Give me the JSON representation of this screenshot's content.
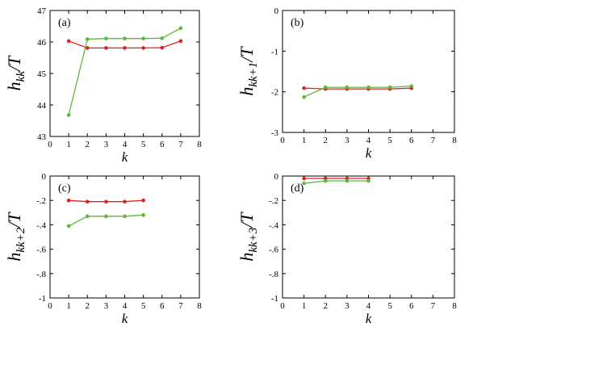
{
  "chart_data": [
    {
      "type": "line",
      "panel_label": "(a)",
      "xlabel": "k",
      "ylabel": {
        "base": "h",
        "sub": "kk",
        "tail": "/T"
      },
      "xlim": [
        0,
        8
      ],
      "ylim": [
        43,
        47
      ],
      "xticks": [
        0,
        1,
        2,
        3,
        4,
        5,
        6,
        7,
        8
      ],
      "yticks": [
        43,
        44,
        45,
        46,
        47
      ],
      "grid": false,
      "series": [
        {
          "color": "#e02020",
          "x": [
            1,
            2,
            3,
            4,
            5,
            6,
            7
          ],
          "y": [
            46.03,
            45.81,
            45.81,
            45.81,
            45.81,
            45.82,
            46.03
          ]
        },
        {
          "color": "#5db83a",
          "x": [
            1,
            2,
            3,
            4,
            5,
            6,
            7
          ],
          "y": [
            43.68,
            46.09,
            46.11,
            46.11,
            46.11,
            46.12,
            46.44
          ]
        }
      ]
    },
    {
      "type": "line",
      "panel_label": "(b)",
      "xlabel": "k",
      "ylabel": {
        "base": "h",
        "sub": "kk+1",
        "tail": "/T"
      },
      "xlim": [
        0,
        8
      ],
      "ylim": [
        -3,
        0
      ],
      "xticks": [
        0,
        1,
        2,
        3,
        4,
        5,
        6,
        7,
        8
      ],
      "yticks": [
        -3,
        -2,
        -1,
        0
      ],
      "grid": false,
      "series": [
        {
          "color": "#e02020",
          "x": [
            1,
            2,
            3,
            4,
            5,
            6
          ],
          "y": [
            -1.91,
            -1.93,
            -1.93,
            -1.93,
            -1.93,
            -1.91
          ]
        },
        {
          "color": "#5db83a",
          "x": [
            1,
            2,
            3,
            4,
            5,
            6
          ],
          "y": [
            -2.13,
            -1.89,
            -1.89,
            -1.89,
            -1.89,
            -1.86
          ]
        }
      ]
    },
    {
      "type": "line",
      "panel_label": "(c)",
      "xlabel": "k",
      "ylabel": {
        "base": "h",
        "sub": "kk+2",
        "tail": "/T"
      },
      "xlim": [
        0,
        8
      ],
      "ylim": [
        -1,
        0
      ],
      "xticks": [
        0,
        1,
        2,
        3,
        4,
        5,
        6,
        7,
        8
      ],
      "yticks": [
        -1,
        -0.8,
        -0.6,
        -0.4,
        -0.2,
        0
      ],
      "grid": false,
      "series": [
        {
          "color": "#e02020",
          "x": [
            1,
            2,
            3,
            4,
            5
          ],
          "y": [
            -0.2,
            -0.21,
            -0.21,
            -0.21,
            -0.2
          ]
        },
        {
          "color": "#5db83a",
          "x": [
            1,
            2,
            3,
            4,
            5
          ],
          "y": [
            -0.41,
            -0.33,
            -0.33,
            -0.33,
            -0.32
          ]
        }
      ]
    },
    {
      "type": "line",
      "panel_label": "(d)",
      "xlabel": "k",
      "ylabel": {
        "base": "h",
        "sub": "kk+3",
        "tail": "/T"
      },
      "xlim": [
        0,
        8
      ],
      "ylim": [
        -1,
        0
      ],
      "xticks": [
        0,
        1,
        2,
        3,
        4,
        5,
        6,
        7,
        8
      ],
      "yticks": [
        -1,
        -0.8,
        -0.6,
        -0.4,
        -0.2,
        0
      ],
      "grid": false,
      "series": [
        {
          "color": "#e02020",
          "x": [
            1,
            2,
            3,
            4
          ],
          "y": [
            -0.02,
            -0.02,
            -0.02,
            -0.02
          ]
        },
        {
          "color": "#5db83a",
          "x": [
            1,
            2,
            3,
            4
          ],
          "y": [
            -0.06,
            -0.04,
            -0.04,
            -0.04
          ]
        }
      ]
    }
  ]
}
